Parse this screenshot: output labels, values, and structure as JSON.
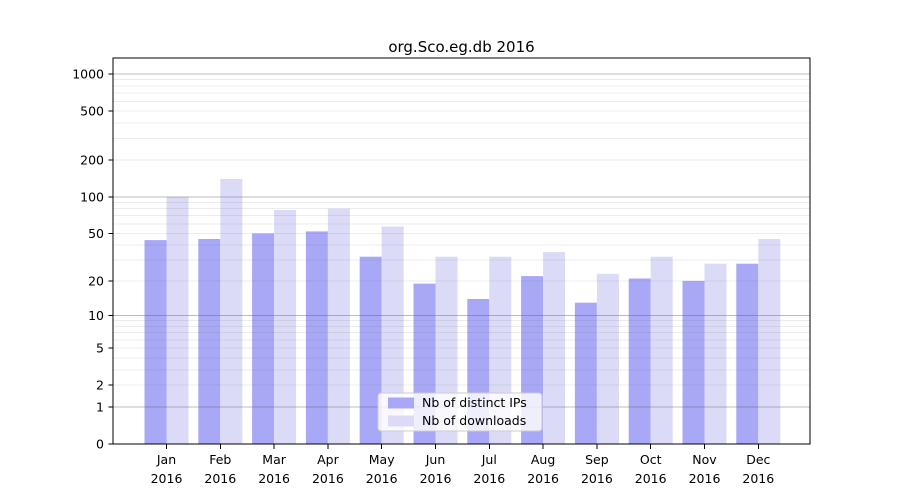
{
  "chart_data": {
    "type": "bar",
    "title": "org.Sco.eg.db 2016",
    "x_year": "2016",
    "categories": [
      "Jan",
      "Feb",
      "Mar",
      "Apr",
      "May",
      "Jun",
      "Jul",
      "Aug",
      "Sep",
      "Oct",
      "Nov",
      "Dec"
    ],
    "series": [
      {
        "name": "Nb of distinct IPs",
        "color": "#a8a8f6",
        "values": [
          44,
          45,
          50,
          52,
          32,
          19,
          14,
          22,
          13,
          21,
          20,
          28
        ]
      },
      {
        "name": "Nb of downloads",
        "color": "#dbdbf8",
        "values": [
          100,
          140,
          78,
          80,
          57,
          32,
          32,
          35,
          23,
          32,
          28,
          45
        ]
      }
    ],
    "y_scale": "log1p",
    "y_ticks": [
      0,
      1,
      2,
      5,
      10,
      20,
      50,
      100,
      200,
      500,
      1000
    ],
    "ylim": [
      0,
      1350
    ],
    "grid": true,
    "legend_position": "lower-center-inside",
    "xlabel": "",
    "ylabel": ""
  }
}
